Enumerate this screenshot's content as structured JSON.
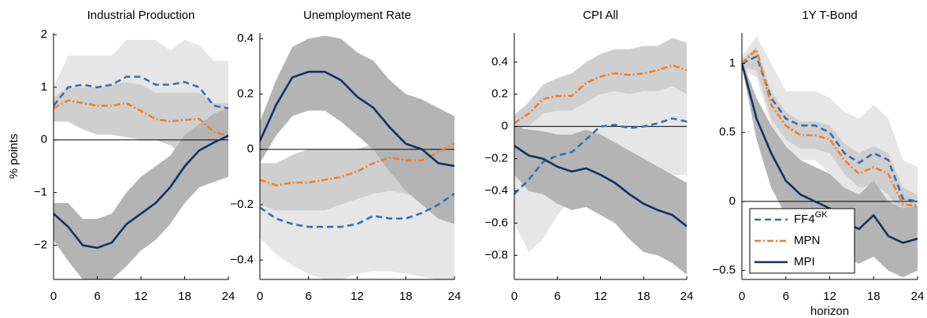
{
  "chart_data": [
    {
      "type": "line",
      "title": "Industrial Production",
      "ylabel": "% points",
      "x": [
        0,
        2,
        4,
        6,
        8,
        10,
        12,
        14,
        16,
        18,
        20,
        22,
        24
      ],
      "xlim": [
        0,
        24
      ],
      "xticks": [
        0,
        6,
        12,
        18,
        24
      ],
      "ylim": [
        -2.65,
        2.03
      ],
      "yticks": [
        {
          "value": -2,
          "label": "−2"
        },
        {
          "value": -1,
          "label": "−1"
        },
        0,
        1,
        2
      ],
      "series": [
        {
          "color": "#3a6ea5",
          "dash": "8,5",
          "band_color": "#e6e6e6",
          "values": [
            0.65,
            1.0,
            1.05,
            1.0,
            1.05,
            1.2,
            1.2,
            1.05,
            1.05,
            1.1,
            1.0,
            0.65,
            0.6
          ],
          "band_lower": [
            0.4,
            0.6,
            0.5,
            0.5,
            0.5,
            0.5,
            0.5,
            0.4,
            0.3,
            0.3,
            0.2,
            -0.2,
            -0.3
          ],
          "band_upper": [
            1.0,
            1.6,
            1.6,
            1.6,
            1.6,
            1.9,
            1.9,
            1.9,
            1.7,
            1.9,
            1.8,
            1.5,
            1.5
          ]
        },
        {
          "color": "#f07f2b",
          "dash": "8,3,2,3",
          "band_color": "#cfcfcf",
          "values": [
            0.6,
            0.75,
            0.7,
            0.65,
            0.65,
            0.7,
            0.55,
            0.4,
            0.35,
            0.38,
            0.4,
            0.15,
            0.08
          ],
          "band_lower": [
            0.35,
            0.35,
            0.2,
            0.1,
            0.1,
            0.05,
            0.0,
            0.0,
            -0.1,
            -0.3,
            -0.5,
            -0.6,
            -0.7
          ],
          "band_upper": [
            0.8,
            1.0,
            1.0,
            1.0,
            1.05,
            1.1,
            1.05,
            0.9,
            0.9,
            0.9,
            0.9,
            0.7,
            0.7
          ]
        },
        {
          "color": "#13315c",
          "dash": "none",
          "band_color": "#b4b4b4",
          "values": [
            -1.4,
            -1.65,
            -2.0,
            -2.05,
            -1.95,
            -1.6,
            -1.4,
            -1.2,
            -0.9,
            -0.5,
            -0.2,
            -0.05,
            0.08
          ],
          "band_lower": [
            -1.9,
            -2.3,
            -2.65,
            -2.65,
            -2.65,
            -2.4,
            -2.1,
            -1.9,
            -1.6,
            -1.2,
            -0.9,
            -0.8,
            -0.7
          ],
          "band_upper": [
            -1.2,
            -1.2,
            -1.5,
            -1.5,
            -1.4,
            -1.0,
            -0.7,
            -0.5,
            -0.3,
            0.1,
            0.3,
            0.5,
            0.6
          ]
        }
      ]
    },
    {
      "type": "line",
      "title": "Unemployment Rate",
      "x": [
        0,
        2,
        4,
        6,
        8,
        10,
        12,
        14,
        16,
        18,
        20,
        22,
        24
      ],
      "xlim": [
        0,
        24
      ],
      "xticks": [
        0,
        6,
        12,
        18,
        24
      ],
      "ylim": [
        -0.47,
        0.42
      ],
      "yticks": [
        {
          "value": -0.4,
          "label": "−0.4"
        },
        {
          "value": -0.2,
          "label": "−0.2"
        },
        0,
        0.2,
        0.4
      ],
      "series": [
        {
          "color": "#3a6ea5",
          "dash": "8,5",
          "band_color": "#e6e6e6",
          "values": [
            -0.21,
            -0.25,
            -0.27,
            -0.28,
            -0.28,
            -0.28,
            -0.27,
            -0.24,
            -0.25,
            -0.25,
            -0.23,
            -0.2,
            -0.16
          ],
          "band_lower": [
            -0.32,
            -0.38,
            -0.42,
            -0.45,
            -0.47,
            -0.47,
            -0.45,
            -0.44,
            -0.44,
            -0.45,
            -0.46,
            -0.47,
            -0.47
          ],
          "band_upper": [
            -0.08,
            -0.1,
            -0.1,
            -0.08,
            -0.06,
            -0.05,
            -0.03,
            0.0,
            0.03,
            0.05,
            0.08,
            0.05,
            0.0
          ]
        },
        {
          "color": "#f07f2b",
          "dash": "8,3,2,3",
          "band_color": "#cfcfcf",
          "values": [
            -0.11,
            -0.13,
            -0.12,
            -0.12,
            -0.11,
            -0.1,
            -0.08,
            -0.05,
            -0.03,
            -0.04,
            -0.04,
            -0.01,
            0.02
          ],
          "band_lower": [
            -0.2,
            -0.22,
            -0.22,
            -0.22,
            -0.22,
            -0.2,
            -0.18,
            -0.16,
            -0.15,
            -0.16,
            -0.18,
            -0.18,
            -0.14
          ],
          "band_upper": [
            -0.05,
            -0.05,
            -0.02,
            0.0,
            0.0,
            0.0,
            0.0,
            0.02,
            0.05,
            0.08,
            0.1,
            0.1,
            0.1
          ]
        },
        {
          "color": "#13315c",
          "dash": "none",
          "band_color": "#b4b4b4",
          "values": [
            0.03,
            0.16,
            0.26,
            0.28,
            0.28,
            0.25,
            0.19,
            0.15,
            0.08,
            0.02,
            0.0,
            -0.05,
            -0.06
          ],
          "band_lower": [
            -0.05,
            0.05,
            0.12,
            0.14,
            0.14,
            0.1,
            0.05,
            0.0,
            -0.08,
            -0.15,
            -0.2,
            -0.25,
            -0.27
          ],
          "band_upper": [
            0.1,
            0.25,
            0.37,
            0.4,
            0.41,
            0.4,
            0.35,
            0.32,
            0.25,
            0.2,
            0.18,
            0.15,
            0.12
          ]
        }
      ]
    },
    {
      "type": "line",
      "title": "CPI All",
      "x": [
        0,
        2,
        4,
        6,
        8,
        10,
        12,
        14,
        16,
        18,
        20,
        22,
        24
      ],
      "xlim": [
        0,
        24
      ],
      "xticks": [
        0,
        6,
        12,
        18,
        24
      ],
      "ylim": [
        -0.95,
        0.58
      ],
      "yticks": [
        {
          "value": -0.8,
          "label": "−0.8"
        },
        {
          "value": -0.6,
          "label": "−0.6"
        },
        {
          "value": -0.4,
          "label": "−0.4"
        },
        {
          "value": -0.2,
          "label": "−0.2"
        },
        0,
        0.2,
        0.4
      ],
      "series": [
        {
          "color": "#3a6ea5",
          "dash": "8,5",
          "band_color": "#e6e6e6",
          "values": [
            -0.42,
            -0.33,
            -0.22,
            -0.18,
            -0.16,
            -0.08,
            0.0,
            0.01,
            -0.01,
            0.0,
            0.02,
            0.05,
            0.03
          ],
          "band_lower": [
            -0.6,
            -0.78,
            -0.7,
            -0.55,
            -0.45,
            -0.38,
            -0.3,
            -0.3,
            -0.32,
            -0.3,
            -0.3,
            -0.3,
            -0.3
          ],
          "band_upper": [
            -0.25,
            0.05,
            0.15,
            0.2,
            0.2,
            0.3,
            0.32,
            0.35,
            0.35,
            0.35,
            0.35,
            0.4,
            0.35
          ]
        },
        {
          "color": "#f07f2b",
          "dash": "8,3,2,3",
          "band_color": "#cfcfcf",
          "values": [
            0.02,
            0.08,
            0.17,
            0.19,
            0.19,
            0.27,
            0.31,
            0.33,
            0.32,
            0.33,
            0.35,
            0.38,
            0.35
          ],
          "band_lower": [
            -0.02,
            0.0,
            0.08,
            0.1,
            0.1,
            0.15,
            0.2,
            0.22,
            0.2,
            0.22,
            0.22,
            0.25,
            0.2
          ],
          "band_upper": [
            0.07,
            0.15,
            0.26,
            0.3,
            0.33,
            0.4,
            0.45,
            0.48,
            0.48,
            0.5,
            0.5,
            0.55,
            0.52
          ]
        },
        {
          "color": "#13315c",
          "dash": "none",
          "band_color": "#b4b4b4",
          "values": [
            -0.12,
            -0.18,
            -0.2,
            -0.25,
            -0.28,
            -0.26,
            -0.3,
            -0.35,
            -0.42,
            -0.48,
            -0.52,
            -0.55,
            -0.62
          ],
          "band_lower": [
            -0.3,
            -0.4,
            -0.42,
            -0.48,
            -0.52,
            -0.5,
            -0.55,
            -0.6,
            -0.7,
            -0.78,
            -0.8,
            -0.85,
            -0.92
          ],
          "band_upper": [
            0.0,
            -0.02,
            -0.03,
            -0.05,
            -0.05,
            -0.02,
            -0.05,
            -0.1,
            -0.15,
            -0.2,
            -0.25,
            -0.3,
            -0.35
          ]
        }
      ]
    },
    {
      "type": "line",
      "title": "1Y T-Bond",
      "xlabel": "horizon",
      "legend": "lower left",
      "x": [
        0,
        2,
        4,
        6,
        8,
        10,
        12,
        14,
        16,
        18,
        20,
        22,
        24
      ],
      "xlim": [
        0,
        24
      ],
      "xticks": [
        0,
        6,
        12,
        18,
        24
      ],
      "ylim": [
        -0.565,
        1.22
      ],
      "yticks": [
        {
          "value": -0.5,
          "label": "−0.5"
        },
        0,
        0.5,
        1
      ],
      "series": [
        {
          "name": "FF4",
          "superscript": "GK",
          "color": "#3a6ea5",
          "dash": "8,5",
          "band_color": "#e6e6e6",
          "values": [
            1.0,
            1.05,
            0.75,
            0.6,
            0.55,
            0.55,
            0.5,
            0.35,
            0.28,
            0.35,
            0.3,
            0.02,
            0.0
          ],
          "band_lower": [
            0.95,
            0.9,
            0.55,
            0.35,
            0.3,
            0.3,
            0.2,
            0.05,
            -0.05,
            -0.05,
            -0.1,
            -0.2,
            -0.25
          ],
          "band_upper": [
            1.05,
            1.2,
            1.0,
            0.8,
            0.8,
            0.8,
            0.75,
            0.65,
            0.6,
            0.7,
            0.6,
            0.3,
            0.25
          ]
        },
        {
          "name": "MPN",
          "color": "#f07f2b",
          "dash": "8,3,2,3",
          "band_color": "#cfcfcf",
          "values": [
            1.0,
            1.1,
            0.7,
            0.55,
            0.48,
            0.48,
            0.45,
            0.3,
            0.2,
            0.25,
            0.2,
            -0.02,
            -0.03
          ],
          "band_lower": [
            0.97,
            0.95,
            0.6,
            0.45,
            0.38,
            0.38,
            0.35,
            0.2,
            0.1,
            0.12,
            0.05,
            -0.1,
            -0.1
          ],
          "band_upper": [
            1.03,
            1.12,
            0.8,
            0.65,
            0.58,
            0.58,
            0.55,
            0.42,
            0.35,
            0.4,
            0.35,
            0.1,
            0.05
          ]
        },
        {
          "name": "MPI",
          "color": "#13315c",
          "dash": "none",
          "band_color": "#b4b4b4",
          "values": [
            1.0,
            0.6,
            0.35,
            0.15,
            0.05,
            0.0,
            -0.05,
            -0.15,
            -0.2,
            -0.1,
            -0.25,
            -0.3,
            -0.27
          ],
          "band_lower": [
            0.98,
            0.45,
            0.1,
            -0.1,
            -0.2,
            -0.25,
            -0.3,
            -0.4,
            -0.45,
            -0.4,
            -0.5,
            -0.55,
            -0.5
          ],
          "band_upper": [
            1.02,
            0.75,
            0.55,
            0.4,
            0.3,
            0.25,
            0.2,
            0.1,
            0.05,
            0.15,
            0.0,
            -0.05,
            -0.03
          ]
        }
      ]
    }
  ]
}
